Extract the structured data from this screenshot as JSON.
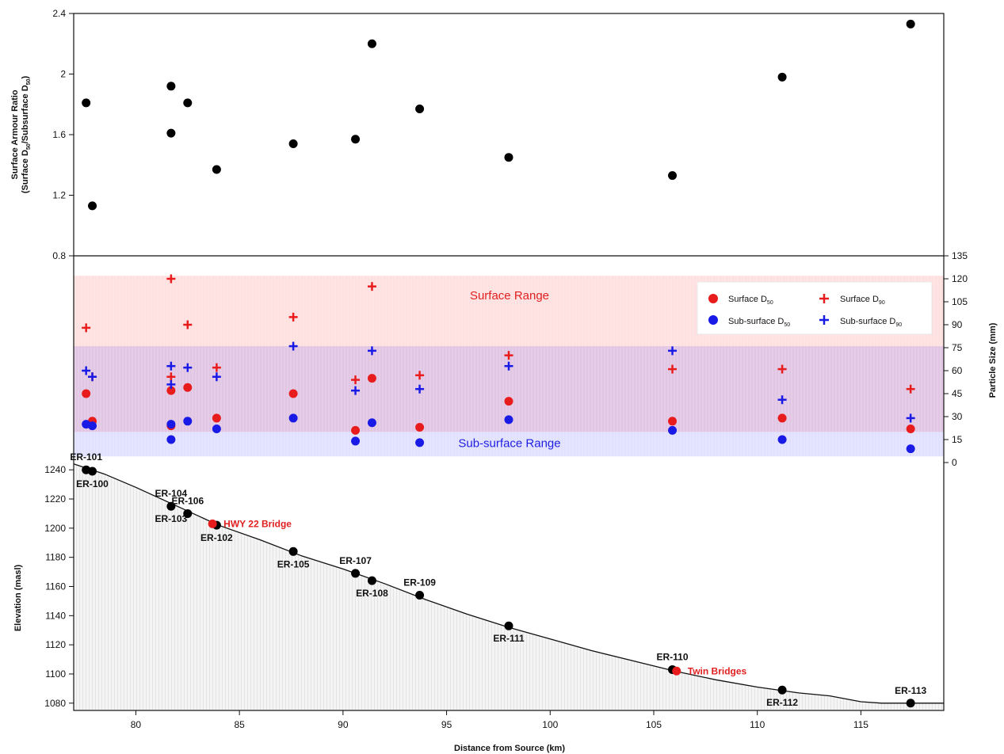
{
  "chart_data": [
    {
      "panel": "armour-ratio",
      "type": "scatter",
      "ylabel_line1": "Surface Armour Ratio",
      "ylabel_line2": "(Surface D",
      "ylabel_sub1": "50",
      "ylabel_mid": "/Subsurface D",
      "ylabel_sub2": "50",
      "ylabel_end": ")",
      "ylim": [
        0.8,
        2.4
      ],
      "yticks": [
        "0.8",
        "1.2",
        "1.6",
        "2",
        "2.4"
      ],
      "ytick_values": [
        0.8,
        1.2,
        1.6,
        2.0,
        2.4
      ],
      "points": [
        {
          "x": 77.6,
          "y": 1.81
        },
        {
          "x": 77.9,
          "y": 1.13
        },
        {
          "x": 81.7,
          "y": 1.92
        },
        {
          "x": 81.7,
          "y": 1.61
        },
        {
          "x": 82.5,
          "y": 1.81
        },
        {
          "x": 83.9,
          "y": 1.37
        },
        {
          "x": 87.6,
          "y": 1.54
        },
        {
          "x": 90.6,
          "y": 1.57
        },
        {
          "x": 91.4,
          "y": 2.2
        },
        {
          "x": 93.7,
          "y": 1.77
        },
        {
          "x": 98.0,
          "y": 1.45
        },
        {
          "x": 105.9,
          "y": 1.33
        },
        {
          "x": 111.2,
          "y": 1.98
        },
        {
          "x": 117.4,
          "y": 2.33
        }
      ],
      "color": "#000000"
    },
    {
      "panel": "particle-size",
      "type": "scatter",
      "ylabel": "Particle Size (mm)",
      "ylim": [
        0,
        135
      ],
      "yticks": [
        "0",
        "15",
        "30",
        "45",
        "60",
        "75",
        "90",
        "105",
        "120",
        "135"
      ],
      "ytick_values": [
        0,
        15,
        30,
        45,
        60,
        75,
        90,
        105,
        120,
        135
      ],
      "ranges": [
        {
          "label": "Surface Range",
          "from": 20,
          "to": 122,
          "color": "#ff4040"
        },
        {
          "label": "Sub-surface Range",
          "from": 4,
          "to": 76,
          "color": "#4a4aff"
        }
      ],
      "legend": {
        "surface_d50": {
          "text": "Surface D",
          "sub": "50",
          "color": "#e81c1c"
        },
        "surface_d90": {
          "text": "Surface D",
          "sub": "90",
          "color": "#e81c1c"
        },
        "subsurface_d50": {
          "text": "Sub-surface D",
          "sub": "50",
          "color": "#1a1ae6"
        },
        "subsurface_d90": {
          "text": "Sub-surface D",
          "sub": "90",
          "color": "#1a1ae6"
        }
      },
      "series": [
        {
          "name": "Surface D50",
          "marker": "circle",
          "color": "#e81c1c",
          "points": [
            [
              77.6,
              45
            ],
            [
              77.9,
              27
            ],
            [
              81.7,
              47
            ],
            [
              81.7,
              24
            ],
            [
              82.5,
              49
            ],
            [
              83.9,
              29
            ],
            [
              87.6,
              45
            ],
            [
              90.6,
              21
            ],
            [
              91.4,
              55
            ],
            [
              93.7,
              23
            ],
            [
              98.0,
              40
            ],
            [
              105.9,
              27
            ],
            [
              111.2,
              29
            ],
            [
              117.4,
              22
            ]
          ]
        },
        {
          "name": "Surface D90",
          "marker": "cross",
          "color": "#e81c1c",
          "points": [
            [
              77.6,
              88
            ],
            [
              77.9,
              56
            ],
            [
              81.7,
              120
            ],
            [
              81.7,
              56
            ],
            [
              82.5,
              90
            ],
            [
              83.9,
              62
            ],
            [
              87.6,
              95
            ],
            [
              90.6,
              54
            ],
            [
              91.4,
              115
            ],
            [
              93.7,
              57
            ],
            [
              98.0,
              70
            ],
            [
              105.9,
              61
            ],
            [
              111.2,
              61
            ],
            [
              117.4,
              48
            ]
          ]
        },
        {
          "name": "Sub-surface D50",
          "marker": "circle",
          "color": "#1a1ae6",
          "points": [
            [
              77.6,
              25
            ],
            [
              77.9,
              24
            ],
            [
              81.7,
              25
            ],
            [
              81.7,
              15
            ],
            [
              82.5,
              27
            ],
            [
              83.9,
              22
            ],
            [
              87.6,
              29
            ],
            [
              90.6,
              14
            ],
            [
              91.4,
              26
            ],
            [
              93.7,
              13
            ],
            [
              98.0,
              28
            ],
            [
              105.9,
              21
            ],
            [
              111.2,
              15
            ],
            [
              117.4,
              9
            ]
          ]
        },
        {
          "name": "Sub-surface D90",
          "marker": "cross",
          "color": "#1a1ae6",
          "points": [
            [
              77.6,
              60
            ],
            [
              77.9,
              56
            ],
            [
              81.7,
              63
            ],
            [
              81.7,
              51
            ],
            [
              82.5,
              62
            ],
            [
              83.9,
              56
            ],
            [
              87.6,
              76
            ],
            [
              90.6,
              47
            ],
            [
              91.4,
              73
            ],
            [
              93.7,
              48
            ],
            [
              98.0,
              63
            ],
            [
              105.9,
              73
            ],
            [
              111.2,
              41
            ],
            [
              117.4,
              29
            ]
          ]
        }
      ]
    },
    {
      "panel": "elevation-profile",
      "type": "line",
      "xlabel": "Distance from Source (km)",
      "ylabel": "Elevation (masl)",
      "xlim": [
        77,
        119
      ],
      "xticks": [
        "80",
        "85",
        "90",
        "95",
        "100",
        "105",
        "110",
        "115"
      ],
      "xtick_values": [
        80,
        85,
        90,
        95,
        100,
        105,
        110,
        115
      ],
      "ylim": [
        1075,
        1245
      ],
      "yticks": [
        "1080",
        "1100",
        "1120",
        "1140",
        "1160",
        "1180",
        "1200",
        "1220",
        "1240"
      ],
      "ytick_values": [
        1080,
        1100,
        1120,
        1140,
        1160,
        1180,
        1200,
        1220,
        1240
      ],
      "profile": [
        [
          77,
          1244
        ],
        [
          78.5,
          1237
        ],
        [
          80,
          1228
        ],
        [
          82,
          1215
        ],
        [
          84,
          1202
        ],
        [
          86,
          1192
        ],
        [
          88,
          1181
        ],
        [
          90,
          1172
        ],
        [
          92,
          1162
        ],
        [
          94,
          1151
        ],
        [
          96,
          1141
        ],
        [
          98,
          1132
        ],
        [
          100,
          1124
        ],
        [
          102,
          1116
        ],
        [
          104,
          1109
        ],
        [
          106,
          1102
        ],
        [
          108,
          1096
        ],
        [
          110,
          1091
        ],
        [
          112,
          1087
        ],
        [
          113.5,
          1085
        ],
        [
          115,
          1081
        ],
        [
          116,
          1080
        ],
        [
          119,
          1080
        ]
      ],
      "sites": [
        {
          "label": "ER-101",
          "x": 77.6,
          "y": 1240,
          "label_pos": "above"
        },
        {
          "label": "ER-100",
          "x": 77.9,
          "y": 1239,
          "label_pos": "below"
        },
        {
          "label": "ER-104",
          "x": 81.7,
          "y": 1215,
          "label_pos": "above"
        },
        {
          "label": "ER-103",
          "x": 81.7,
          "y": 1215,
          "label_pos": "below"
        },
        {
          "label": "ER-106",
          "x": 82.5,
          "y": 1210,
          "label_pos": "above"
        },
        {
          "label": "ER-102",
          "x": 83.9,
          "y": 1202,
          "label_pos": "below"
        },
        {
          "label": "ER-105",
          "x": 87.6,
          "y": 1184,
          "label_pos": "below"
        },
        {
          "label": "ER-107",
          "x": 90.6,
          "y": 1169,
          "label_pos": "above"
        },
        {
          "label": "ER-108",
          "x": 91.4,
          "y": 1164,
          "label_pos": "below"
        },
        {
          "label": "ER-109",
          "x": 93.7,
          "y": 1154,
          "label_pos": "above"
        },
        {
          "label": "ER-111",
          "x": 98.0,
          "y": 1133,
          "label_pos": "below"
        },
        {
          "label": "ER-110",
          "x": 105.9,
          "y": 1103,
          "label_pos": "above"
        },
        {
          "label": "ER-112",
          "x": 111.2,
          "y": 1089,
          "label_pos": "below"
        },
        {
          "label": "ER-113",
          "x": 117.4,
          "y": 1080,
          "label_pos": "above"
        }
      ],
      "landmarks": [
        {
          "label": "HWY 22 Bridge",
          "x": 83.7,
          "y": 1203,
          "color": "#e81c1c"
        },
        {
          "label": "Twin Bridges",
          "x": 106.1,
          "y": 1102,
          "color": "#e81c1c"
        }
      ]
    }
  ]
}
